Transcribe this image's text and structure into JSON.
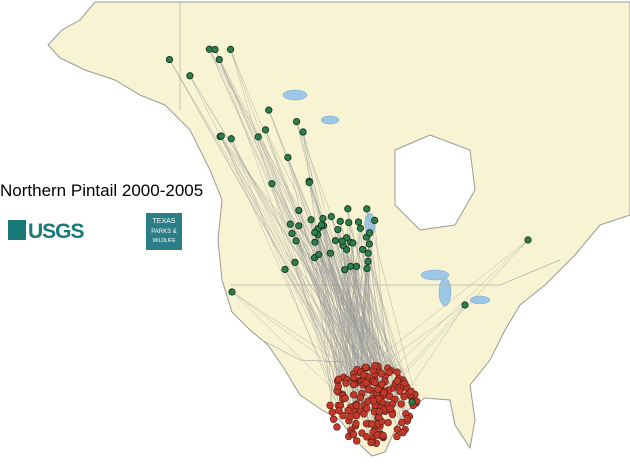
{
  "title": "Northern Pintail 2000-2005",
  "logos": {
    "usgs": "USGS",
    "tpwd": [
      "TEXAS",
      "PARKS &",
      "WILDLIFE"
    ]
  }
}
